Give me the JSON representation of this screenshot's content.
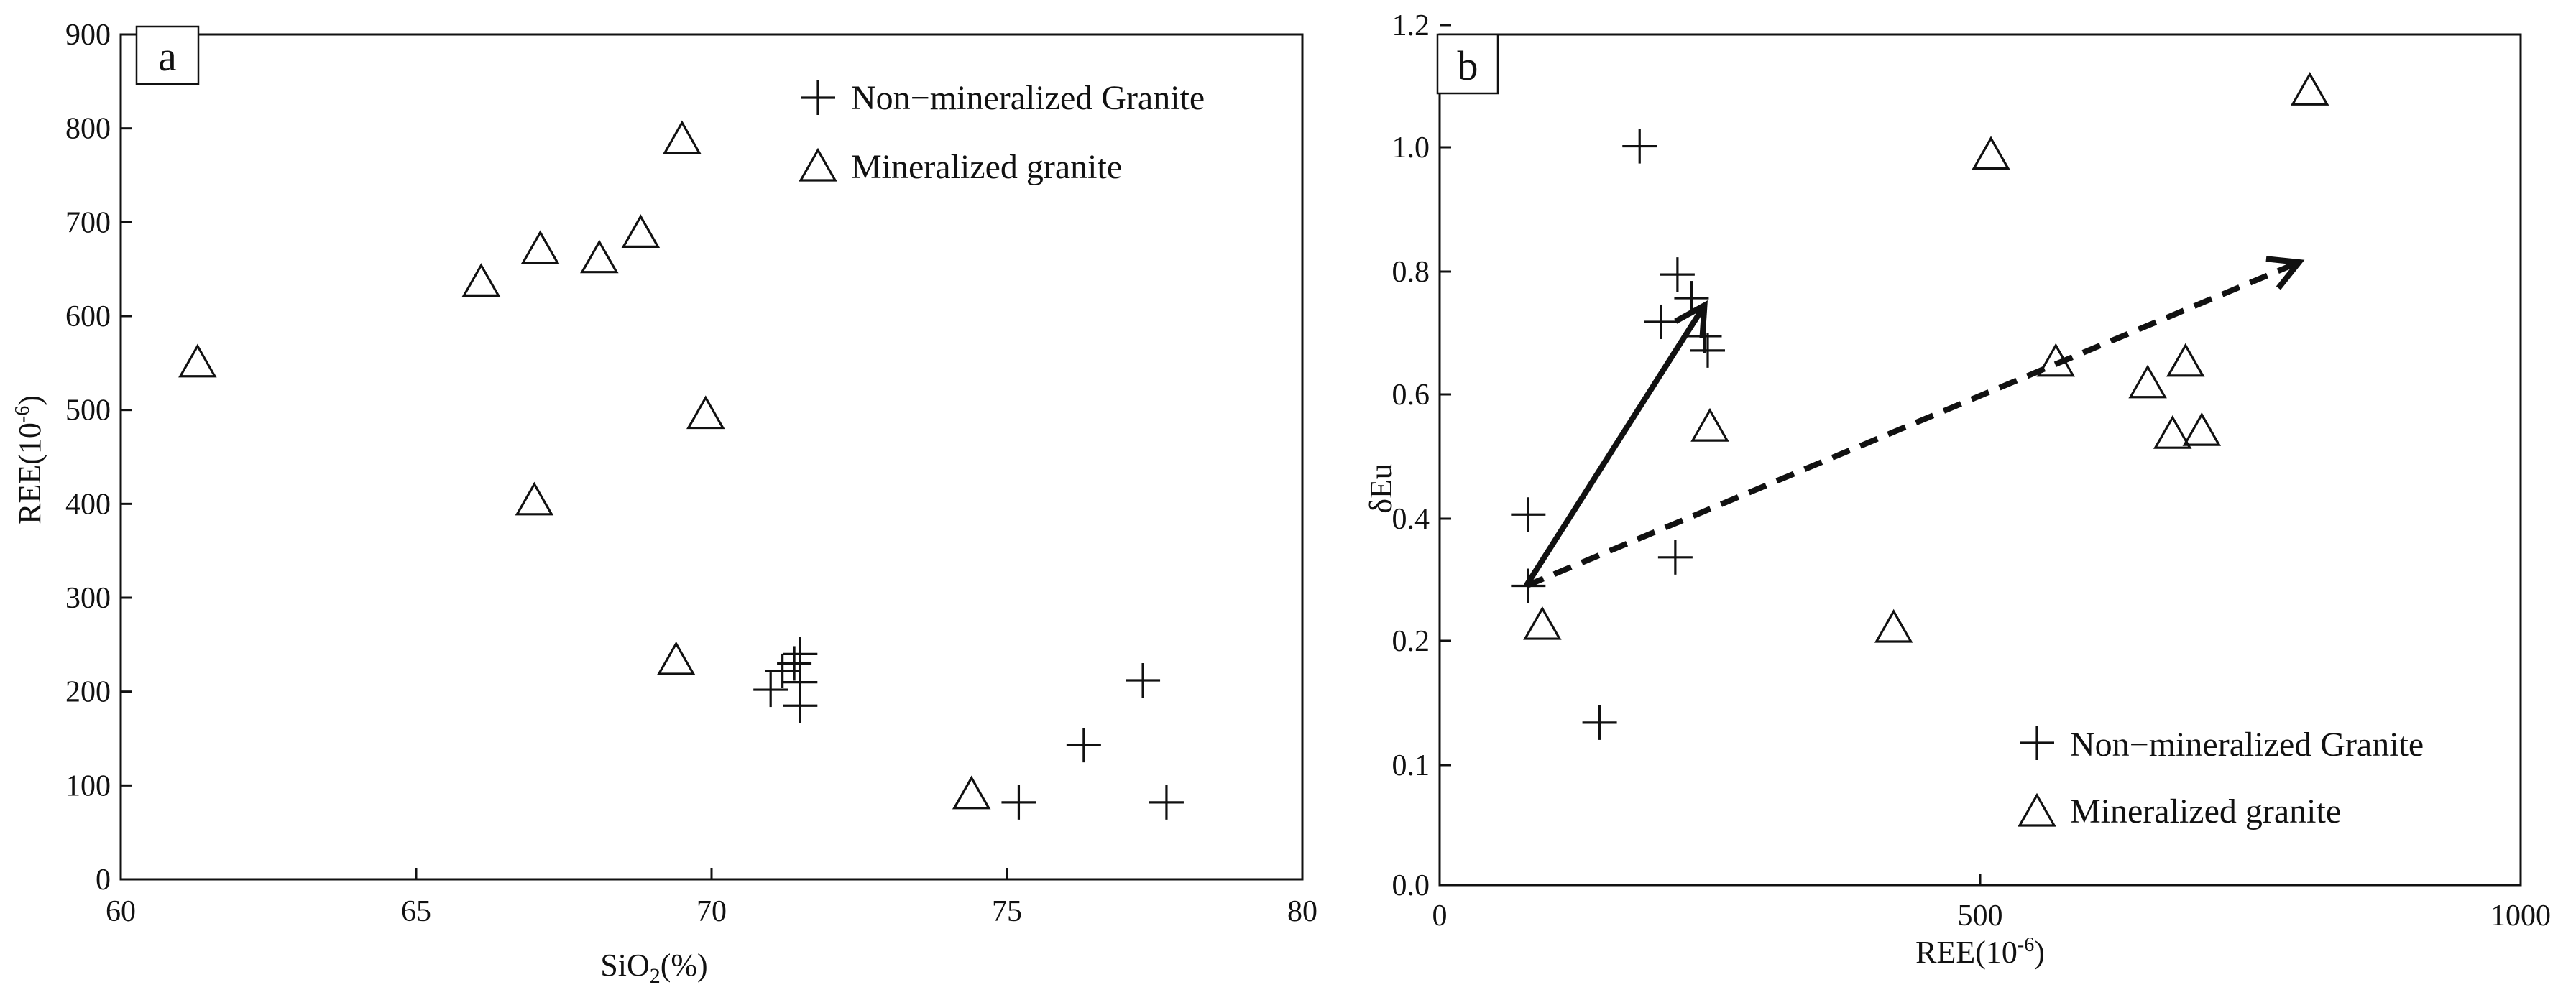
{
  "chart_data": [
    {
      "type": "scatter",
      "panel_label": "a",
      "xlabel": "SiO2(%)",
      "ylabel": "REE(10-6)",
      "xlim": [
        60,
        80
      ],
      "ylim": [
        0,
        900
      ],
      "xticks": [
        60,
        65,
        70,
        75,
        80
      ],
      "yticks": [
        0,
        100,
        200,
        300,
        400,
        500,
        600,
        700,
        800,
        900
      ],
      "legend_position": "top-right",
      "series": [
        {
          "name": "Non−mineralized Granite",
          "marker": "plus",
          "points": [
            [
              71.0,
              202
            ],
            [
              71.2,
              222
            ],
            [
              71.4,
              230
            ],
            [
              71.5,
              240
            ],
            [
              71.5,
              210
            ],
            [
              71.5,
              185
            ],
            [
              75.2,
              82
            ],
            [
              76.3,
              143
            ],
            [
              77.3,
              212
            ],
            [
              77.7,
              82
            ]
          ]
        },
        {
          "name": "Mineralized granite",
          "marker": "triangle",
          "points": [
            [
              61.3,
              552
            ],
            [
              66.1,
              638
            ],
            [
              67.0,
              405
            ],
            [
              67.1,
              673
            ],
            [
              68.1,
              663
            ],
            [
              68.8,
              690
            ],
            [
              69.4,
              235
            ],
            [
              69.5,
              790
            ],
            [
              69.9,
              497
            ],
            [
              74.4,
              92
            ]
          ]
        }
      ]
    },
    {
      "type": "scatter",
      "panel_label": "b",
      "xlabel": "REE(10-6)",
      "ylabel": "δEu",
      "xlim": [
        0,
        1000
      ],
      "ylim": [
        0,
        1.2
      ],
      "xticks": [
        "0",
        "500",
        "1000"
      ],
      "yticks": [
        "0.0",
        "0.1",
        "0.2",
        "0.4",
        "0.6",
        "0.8",
        "1.0",
        "1.2"
      ],
      "legend_position": "bottom-right",
      "series": [
        {
          "name": "Non−mineralized Granite",
          "marker": "plus",
          "points": [
            [
              82,
              0.52
            ],
            [
              82,
              0.42
            ],
            [
              148,
              0.23
            ],
            [
              185,
              1.03
            ],
            [
              205,
              0.787
            ],
            [
              218,
              0.46
            ],
            [
              220,
              0.853
            ],
            [
              233,
              0.82
            ],
            [
              245,
              0.767
            ],
            [
              248,
              0.747
            ]
          ]
        },
        {
          "name": "Mineralized granite",
          "marker": "triangle",
          "points": [
            [
              95,
              0.367
            ],
            [
              250,
              0.643
            ],
            [
              420,
              0.363
            ],
            [
              510,
              1.02
            ],
            [
              570,
              0.733
            ],
            [
              655,
              0.703
            ],
            [
              678,
              0.633
            ],
            [
              690,
              0.733
            ],
            [
              705,
              0.637
            ],
            [
              805,
              1.11
            ]
          ]
        }
      ],
      "arrows": [
        {
          "style": "solid",
          "from": [
            80,
            0.42
          ],
          "to": [
            245,
            0.81
          ]
        },
        {
          "style": "dashed",
          "from": [
            80,
            0.42
          ],
          "to": [
            795,
            0.87
          ]
        }
      ]
    }
  ]
}
